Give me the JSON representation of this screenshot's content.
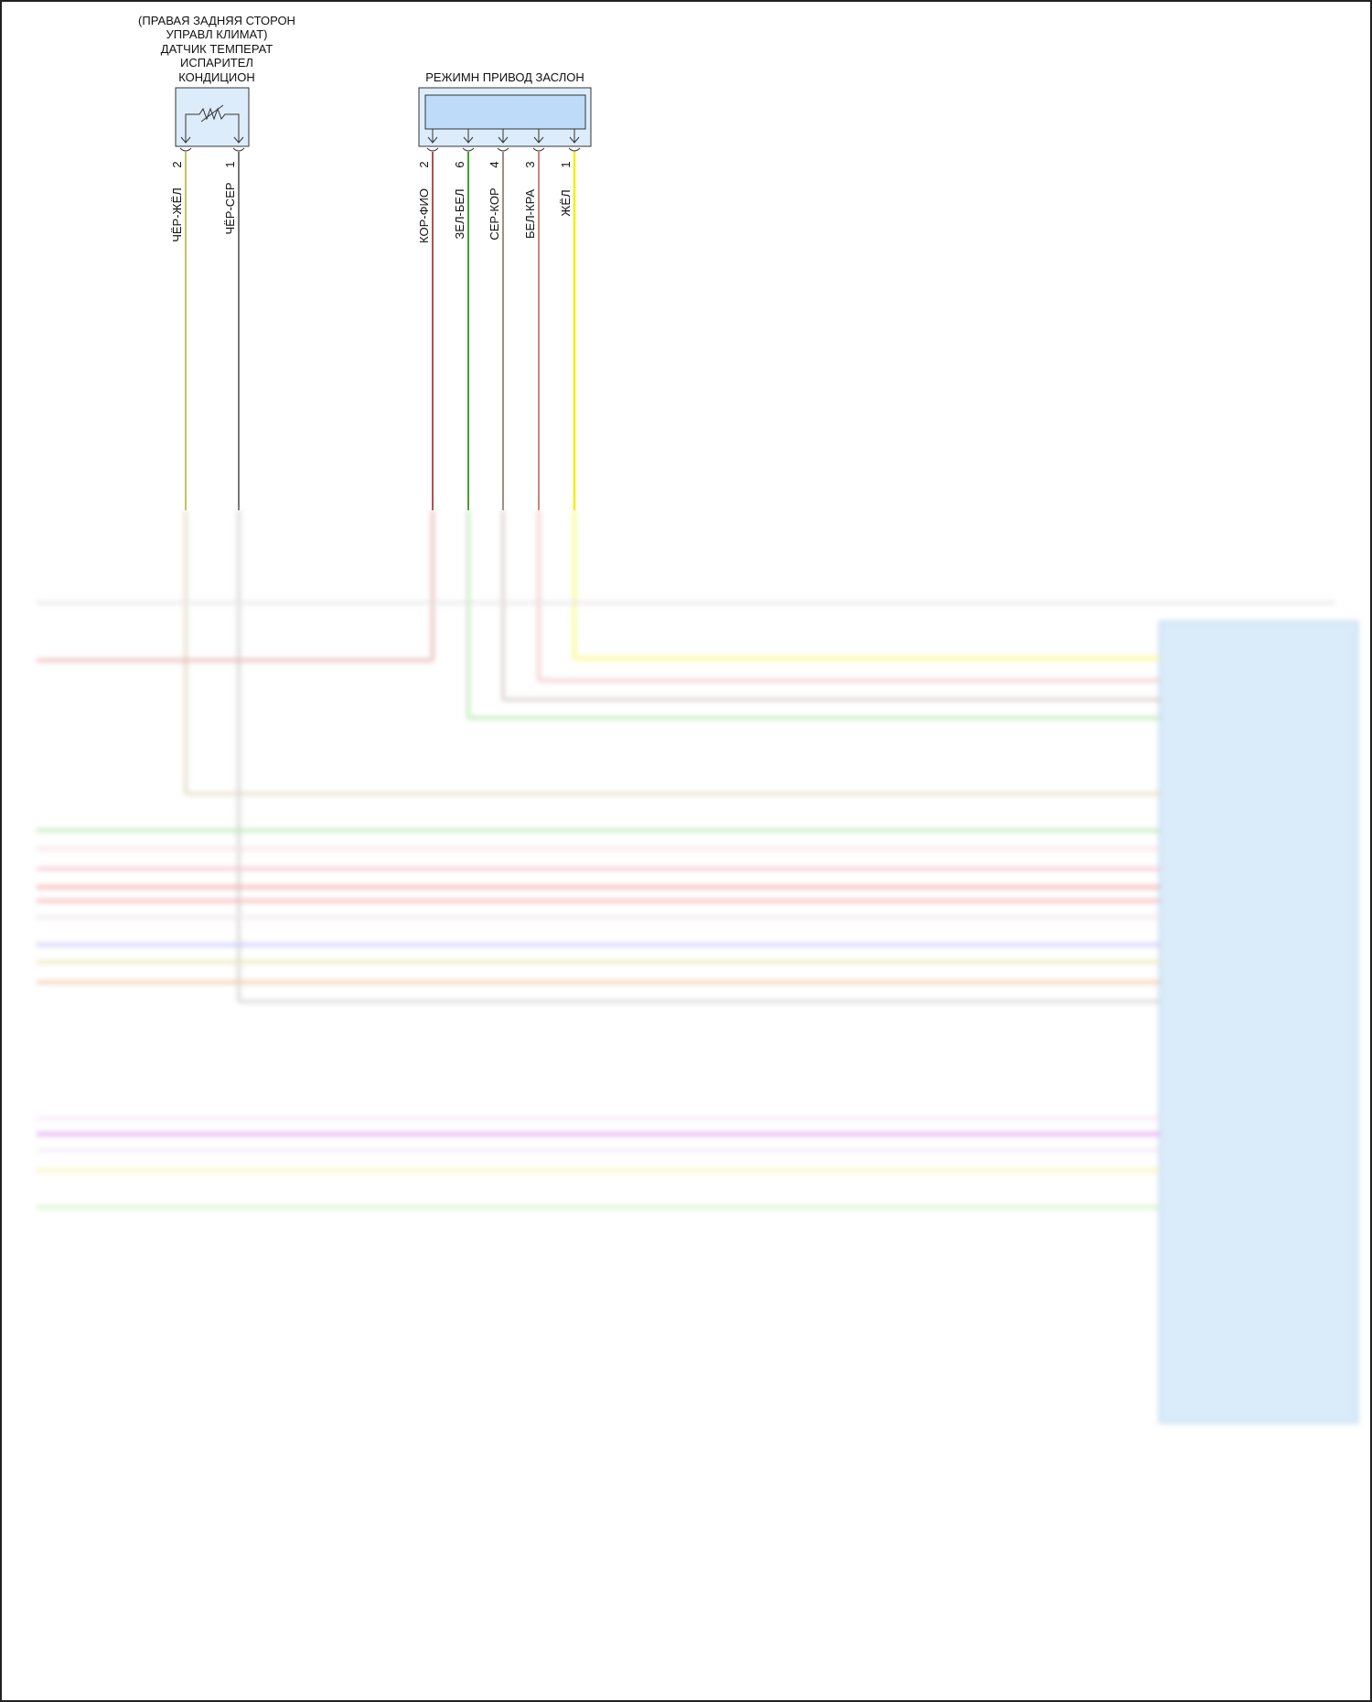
{
  "sensor": {
    "title_lines": [
      "(ПРАВАЯ ЗАДНЯЯ СТОРОН",
      "УПРАВЛ КЛИМАТ)",
      "ДАТЧИК ТЕМПЕРАТ",
      "ИСПАРИТЕЛ",
      "КОНДИЦИОН"
    ],
    "pins": [
      {
        "pin": "2",
        "wire": "ЧЁР-ЖЁЛ",
        "color": "#c8c060"
      },
      {
        "pin": "1",
        "wire": "ЧЁР-СЕР",
        "color": "#777777"
      }
    ]
  },
  "actuator": {
    "title": "РЕЖИМН ПРИВОД ЗАСЛОН",
    "pins": [
      {
        "pin": "2",
        "wire": "КОР-ФИО",
        "color": "#b05050"
      },
      {
        "pin": "6",
        "wire": "ЗЕЛ-БЕЛ",
        "color": "#40a030"
      },
      {
        "pin": "4",
        "wire": "СЕР-КОР",
        "color": "#a09080"
      },
      {
        "pin": "3",
        "wire": "БЕЛ-КРА",
        "color": "#d08080"
      },
      {
        "pin": "1",
        "wire": "ЖЁЛ",
        "color": "#f0f000"
      }
    ]
  },
  "colors": {
    "connector_fill": "#dcecfa",
    "actuator_bar": "#bcdcfa",
    "module_fill": "#d4e8fa"
  }
}
